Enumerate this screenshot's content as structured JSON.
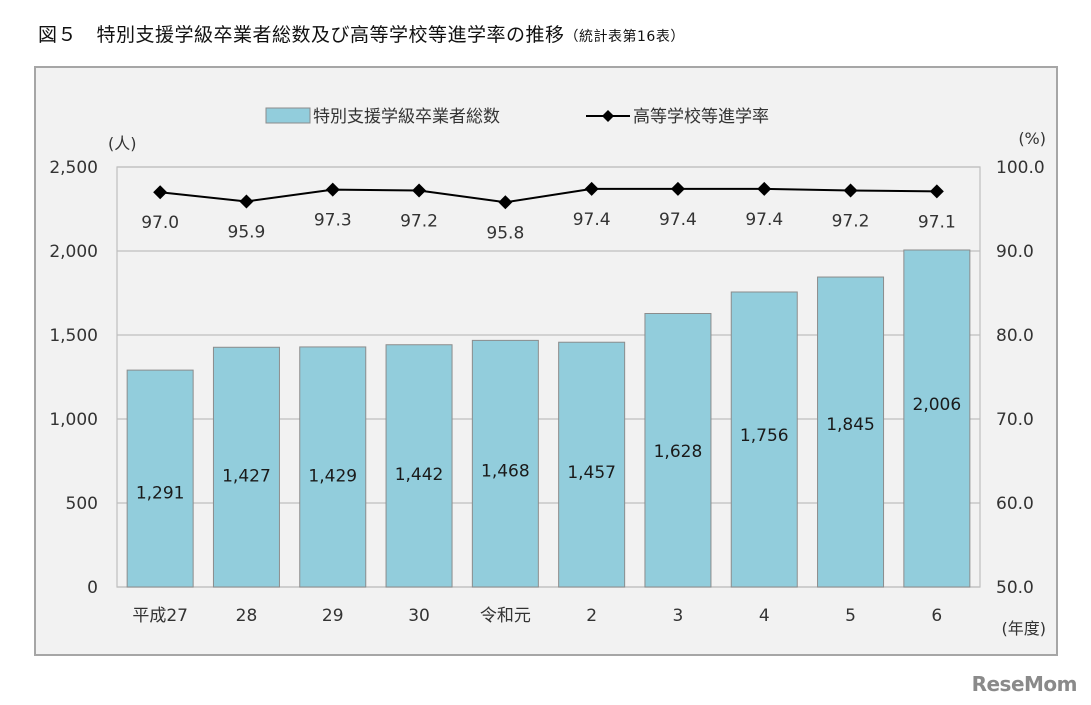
{
  "title": {
    "main": "図５　特別支援学級卒業者総数及び高等学校等進学率の推移",
    "sub": "（統計表第16表）"
  },
  "watermark": "ReseMom",
  "colors": {
    "bar_fill": "#92cddc",
    "bar_stroke": "#8c8c8c",
    "line": "#000000",
    "background": "#f2f2f2",
    "frame": "#a6a6a6",
    "grid": "#bfbfbf"
  },
  "chart_data": {
    "type": "bar+line",
    "title": "特別支援学級卒業者総数及び高等学校等進学率の推移",
    "categories": [
      "平成27",
      "28",
      "29",
      "30",
      "令和元",
      "2",
      "3",
      "4",
      "5",
      "6"
    ],
    "xlabel": "(年度)",
    "series": [
      {
        "name": "特別支援学級卒業者総数",
        "type": "bar",
        "axis": "left",
        "values": [
          1291,
          1427,
          1429,
          1442,
          1468,
          1457,
          1628,
          1756,
          1845,
          2006
        ],
        "labels": [
          "1,291",
          "1,427",
          "1,429",
          "1,442",
          "1,468",
          "1,457",
          "1,628",
          "1,756",
          "1,845",
          "2,006"
        ]
      },
      {
        "name": "高等学校等進学率",
        "type": "line",
        "axis": "right",
        "marker": "diamond",
        "values": [
          97.0,
          95.9,
          97.3,
          97.2,
          95.8,
          97.4,
          97.4,
          97.4,
          97.2,
          97.1
        ],
        "labels": [
          "97.0",
          "95.9",
          "97.3",
          "97.2",
          "95.8",
          "97.4",
          "97.4",
          "97.4",
          "97.2",
          "97.1"
        ]
      }
    ],
    "y_left": {
      "label": "(人)",
      "ylim": [
        0,
        2500
      ],
      "ticks": [
        0,
        500,
        1000,
        1500,
        2000,
        2500
      ],
      "tick_labels": [
        "0",
        "500",
        "1,000",
        "1,500",
        "2,000",
        "2,500"
      ]
    },
    "y_right": {
      "label": "(%)",
      "ylim": [
        50.0,
        100.0
      ],
      "ticks": [
        50,
        60,
        70,
        80,
        90,
        100
      ],
      "tick_labels": [
        "50.0",
        "60.0",
        "70.0",
        "80.0",
        "90.0",
        "100.0"
      ]
    },
    "legend": {
      "position": "top",
      "entries": [
        "特別支援学級卒業者総数",
        "高等学校等進学率"
      ]
    },
    "grid": true
  }
}
